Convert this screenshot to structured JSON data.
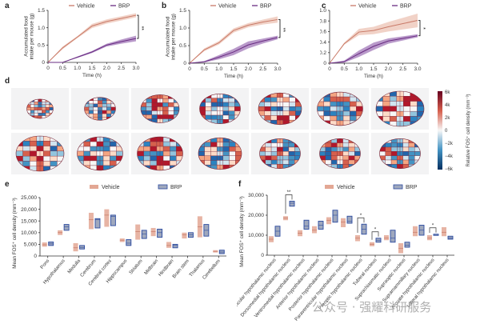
{
  "legend": {
    "vehicle": "Vehicle",
    "brp": "BRP"
  },
  "colors": {
    "vehicle_line": "#c97a68",
    "vehicle_band": "#ecc3b4",
    "brp_line": "#6a2c83",
    "brp_band": "#9b6fb3",
    "vehicle_box": "#e3a794",
    "brp_box_edge": "#2b4aa0",
    "brp_box_fill": "#9fa8bd"
  },
  "panel_d": {
    "label": "d",
    "colorbar": {
      "title": "Relative FOS⁺ cell density (mm⁻³)",
      "ticks": [
        "6k",
        "4k",
        "2k",
        "0",
        "−2k",
        "−4k",
        "−6k"
      ],
      "range": [
        -6000,
        6000
      ]
    },
    "sections_row1": 7,
    "sections_row2": 7
  },
  "watermark": "公众号 · 强耀科研服务",
  "chart_data": [
    {
      "id": "a",
      "type": "line",
      "title": "",
      "xlabel": "Time (h)",
      "ylabel": "Accumulated food intake per mouse (g)",
      "xlim": [
        0,
        3.0
      ],
      "ylim": [
        0,
        1.5
      ],
      "xticks": [
        "0",
        "0.5",
        "1.0",
        "1.5",
        "2.0",
        "2.5",
        "3.0"
      ],
      "yticks": [
        "0",
        "0.5",
        "1.0",
        "1.5"
      ],
      "x": [
        0,
        0.5,
        1.0,
        1.5,
        2.0,
        2.5,
        3.0
      ],
      "series": [
        {
          "name": "Vehicle",
          "values": [
            0,
            0.42,
            0.73,
            1.05,
            1.18,
            1.27,
            1.36
          ],
          "err": [
            0,
            0.04,
            0.03,
            0.06,
            0.06,
            0.06,
            0.06
          ]
        },
        {
          "name": "BRP",
          "values": [
            0,
            0,
            0.15,
            0.3,
            0.5,
            0.6,
            0.69
          ],
          "err": [
            0,
            0,
            0.02,
            0.03,
            0.04,
            0.06,
            0.08
          ]
        }
      ],
      "significance": "**",
      "legend": "top"
    },
    {
      "id": "b",
      "type": "line",
      "title": "",
      "xlabel": "Time (h)",
      "ylabel": "Accumulated food intake per mouse (g)",
      "xlim": [
        0,
        3.0
      ],
      "ylim": [
        0,
        1.5
      ],
      "xticks": [
        "0",
        "0.5",
        "1.0",
        "1.5",
        "2.0",
        "2.5",
        "3.0"
      ],
      "yticks": [
        "0",
        "0.5",
        "1.0",
        "1.5"
      ],
      "x": [
        0,
        0.5,
        1.0,
        1.5,
        2.0,
        2.5,
        3.0
      ],
      "series": [
        {
          "name": "Vehicle",
          "values": [
            0,
            0.38,
            0.58,
            0.93,
            1.08,
            1.17,
            1.24
          ],
          "err": [
            0,
            0.04,
            0.05,
            0.06,
            0.06,
            0.07,
            0.09
          ]
        },
        {
          "name": "BRP",
          "values": [
            0,
            0.04,
            0.17,
            0.32,
            0.52,
            0.63,
            0.73
          ],
          "err": [
            0,
            0.02,
            0.06,
            0.09,
            0.1,
            0.07,
            0.05
          ]
        }
      ],
      "significance": "**",
      "legend": "top"
    },
    {
      "id": "c",
      "type": "line",
      "title": "",
      "xlabel": "Time (h)",
      "ylabel": "Accumulated food intake per mouse (g)",
      "xlim": [
        0,
        3.0
      ],
      "ylim": [
        0,
        1.0
      ],
      "xticks": [
        "0",
        "0.5",
        "1.0",
        "1.5",
        "2.0",
        "2.5",
        "3.0"
      ],
      "yticks": [
        "0",
        "0.2",
        "0.4",
        "0.6",
        "0.8",
        "1.0"
      ],
      "x": [
        0,
        0.5,
        1.0,
        1.5,
        2.0,
        2.5,
        3.0
      ],
      "series": [
        {
          "name": "Vehicle",
          "values": [
            0,
            0.37,
            0.59,
            0.62,
            0.69,
            0.75,
            0.81
          ],
          "err": [
            0,
            0.02,
            0.06,
            0.07,
            0.09,
            0.11,
            0.13
          ]
        },
        {
          "name": "BRP",
          "values": [
            0,
            0.03,
            0.18,
            0.32,
            0.42,
            0.47,
            0.52
          ],
          "err": [
            0,
            0.02,
            0.06,
            0.07,
            0.05,
            0.04,
            0.03
          ]
        }
      ],
      "significance": "*",
      "legend": "top"
    },
    {
      "id": "e",
      "type": "bar",
      "subtype": "floating-box",
      "xlabel": "",
      "ylabel": "Mean FOS⁺ cell density (mm⁻³)",
      "ylim": [
        0,
        25000
      ],
      "yticks": [
        "0",
        "5,000",
        "10,000",
        "15,000",
        "20,000",
        "25,000"
      ],
      "categories": [
        "Pons",
        "Hypothalamus",
        "Medulla",
        "Cerebrum",
        "Cerebral cortex",
        "Hippocampus",
        "Striatum",
        "Midbrain",
        "Hindbrain",
        "Brain stem",
        "Thalamus",
        "Cerebellum"
      ],
      "series": [
        {
          "name": "Vehicle",
          "min": [
            4000,
            9000,
            2000,
            11500,
            12500,
            6000,
            7000,
            8500,
            3500,
            7500,
            8000,
            1500
          ],
          "mean": [
            4800,
            10000,
            3500,
            15500,
            17500,
            6800,
            10500,
            10500,
            4500,
            9000,
            12500,
            2000
          ],
          "max": [
            5800,
            11000,
            5500,
            18500,
            20000,
            7500,
            13500,
            12000,
            6000,
            10000,
            17000,
            2500
          ]
        },
        {
          "name": "BRP",
          "min": [
            4500,
            11000,
            3000,
            12000,
            13000,
            4500,
            7500,
            8000,
            3500,
            8000,
            8500,
            1000
          ],
          "mean": [
            5200,
            12500,
            3700,
            15500,
            17000,
            5500,
            9500,
            10000,
            4500,
            9000,
            11000,
            1700
          ],
          "max": [
            6000,
            13500,
            4500,
            16000,
            17500,
            7000,
            11000,
            11500,
            5000,
            10000,
            13500,
            2500
          ]
        }
      ],
      "legend": "top"
    },
    {
      "id": "f",
      "type": "bar",
      "subtype": "floating-box",
      "xlabel": "",
      "ylabel": "Mean FOS⁺ cell density (mm⁻³)",
      "ylim": [
        0,
        30000
      ],
      "yticks": [
        "0",
        "10,000",
        "20,000",
        "30,000"
      ],
      "categories": [
        "Periventricular hypothalamic nucleus",
        "Dorsomedial hypothalamic nucleus",
        "Ventromedial hypothalamic nucleus",
        "Anterior hypothalamic nucleus",
        "Posterior hypothalamic nucleus",
        "Paraventricular hypothalamic nucleus",
        "Preoptic hypothalamic nucleus",
        "Tuberal nucleus",
        "Suprachiasmatic nucleus",
        "Supraoptic nucleus",
        "Supramammillary nucleus",
        "Arcuate hypothalamic nucleus",
        "Lateral hypothalamic nucleus"
      ],
      "series": [
        {
          "name": "Vehicle",
          "min": [
            6500,
            17500,
            9500,
            11000,
            15500,
            14000,
            7000,
            4500,
            7500,
            1000,
            9500,
            7500,
            9500
          ],
          "mean": [
            8000,
            18500,
            11000,
            12500,
            17500,
            16500,
            8500,
            5500,
            8500,
            3500,
            11500,
            8500,
            11500
          ],
          "max": [
            9500,
            19500,
            12500,
            14500,
            19000,
            18500,
            10000,
            6500,
            10000,
            6000,
            14500,
            10000,
            14000
          ]
        },
        {
          "name": "BRP",
          "min": [
            9500,
            24500,
            13000,
            13000,
            16500,
            16000,
            10500,
            6500,
            6500,
            4000,
            10000,
            10000,
            8000
          ],
          "mean": [
            12000,
            26000,
            14500,
            15000,
            20000,
            17000,
            13000,
            7500,
            8500,
            5000,
            12500,
            10500,
            8500
          ],
          "max": [
            14500,
            27000,
            17500,
            17000,
            22500,
            19500,
            15500,
            8500,
            12500,
            6500,
            15000,
            10500,
            9500
          ]
        }
      ],
      "significance": [
        {
          "category": "Dorsomedial hypothalamic nucleus",
          "label": "**"
        },
        {
          "category": "Preoptic hypothalamic nucleus",
          "label": "*"
        },
        {
          "category": "Tuberal nucleus",
          "label": "*"
        },
        {
          "category": "Arcuate hypothalamic nucleus",
          "label": "*"
        }
      ],
      "legend": "top"
    }
  ]
}
